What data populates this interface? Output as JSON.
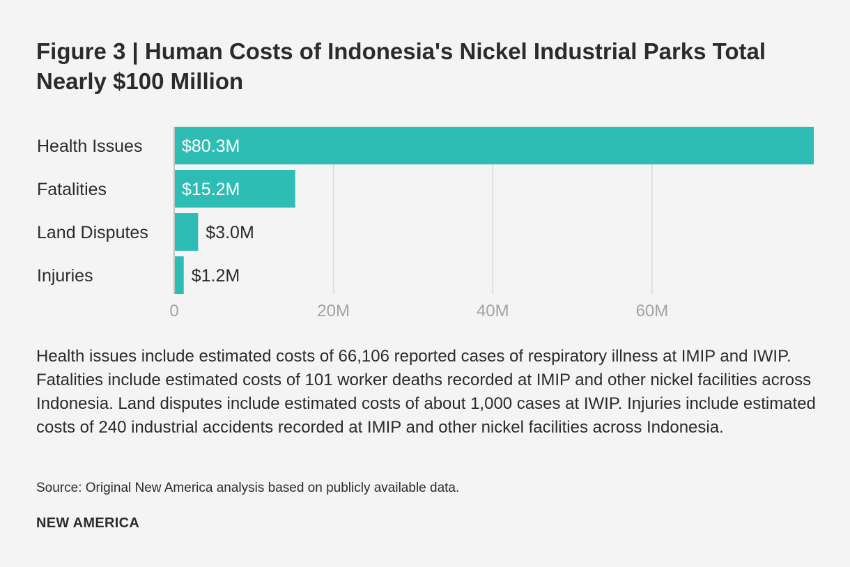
{
  "title": "Figure 3 | Human Costs of Indonesia's Nickel Industrial Parks Total Nearly $100 Million",
  "chart_data": {
    "type": "bar",
    "orientation": "horizontal",
    "categories": [
      "Health Issues",
      "Fatalities",
      "Land Disputes",
      "Injuries"
    ],
    "values": [
      80.3,
      15.2,
      3.0,
      1.2
    ],
    "value_unit": "million USD",
    "data_labels": [
      "$80.3M",
      "$15.2M",
      "$3.0M",
      "$1.2M"
    ],
    "x_ticks": [
      0,
      20,
      40,
      60
    ],
    "x_tick_labels": [
      "0",
      "20M",
      "40M",
      "60M"
    ],
    "xlim": [
      0,
      80.3
    ],
    "grid": true,
    "title": "",
    "xlabel": "",
    "ylabel": "",
    "bar_color": "#2ebdb4"
  },
  "description": "Health issues include estimated costs of 66,106 reported cases of respiratory illness at IMIP and IWIP. Fatalities include estimated costs of 101 worker deaths recorded at IMIP and other nickel facilities across Indonesia. Land disputes include estimated costs of about 1,000 cases at IWIP. Injuries include estimated costs of 240 industrial accidents recorded at IMIP and other nickel facilities across Indonesia.",
  "source": "Source: Original New America analysis based on publicly available data.",
  "brand": "NEW AMERICA",
  "colors": {
    "bar": "#2ebdb4",
    "grid": "#d9d9d9",
    "axis": "#c4c4c4",
    "tick_text": "#a3a3a3",
    "text": "#2b2b2b",
    "background": "#f4f4f4"
  }
}
